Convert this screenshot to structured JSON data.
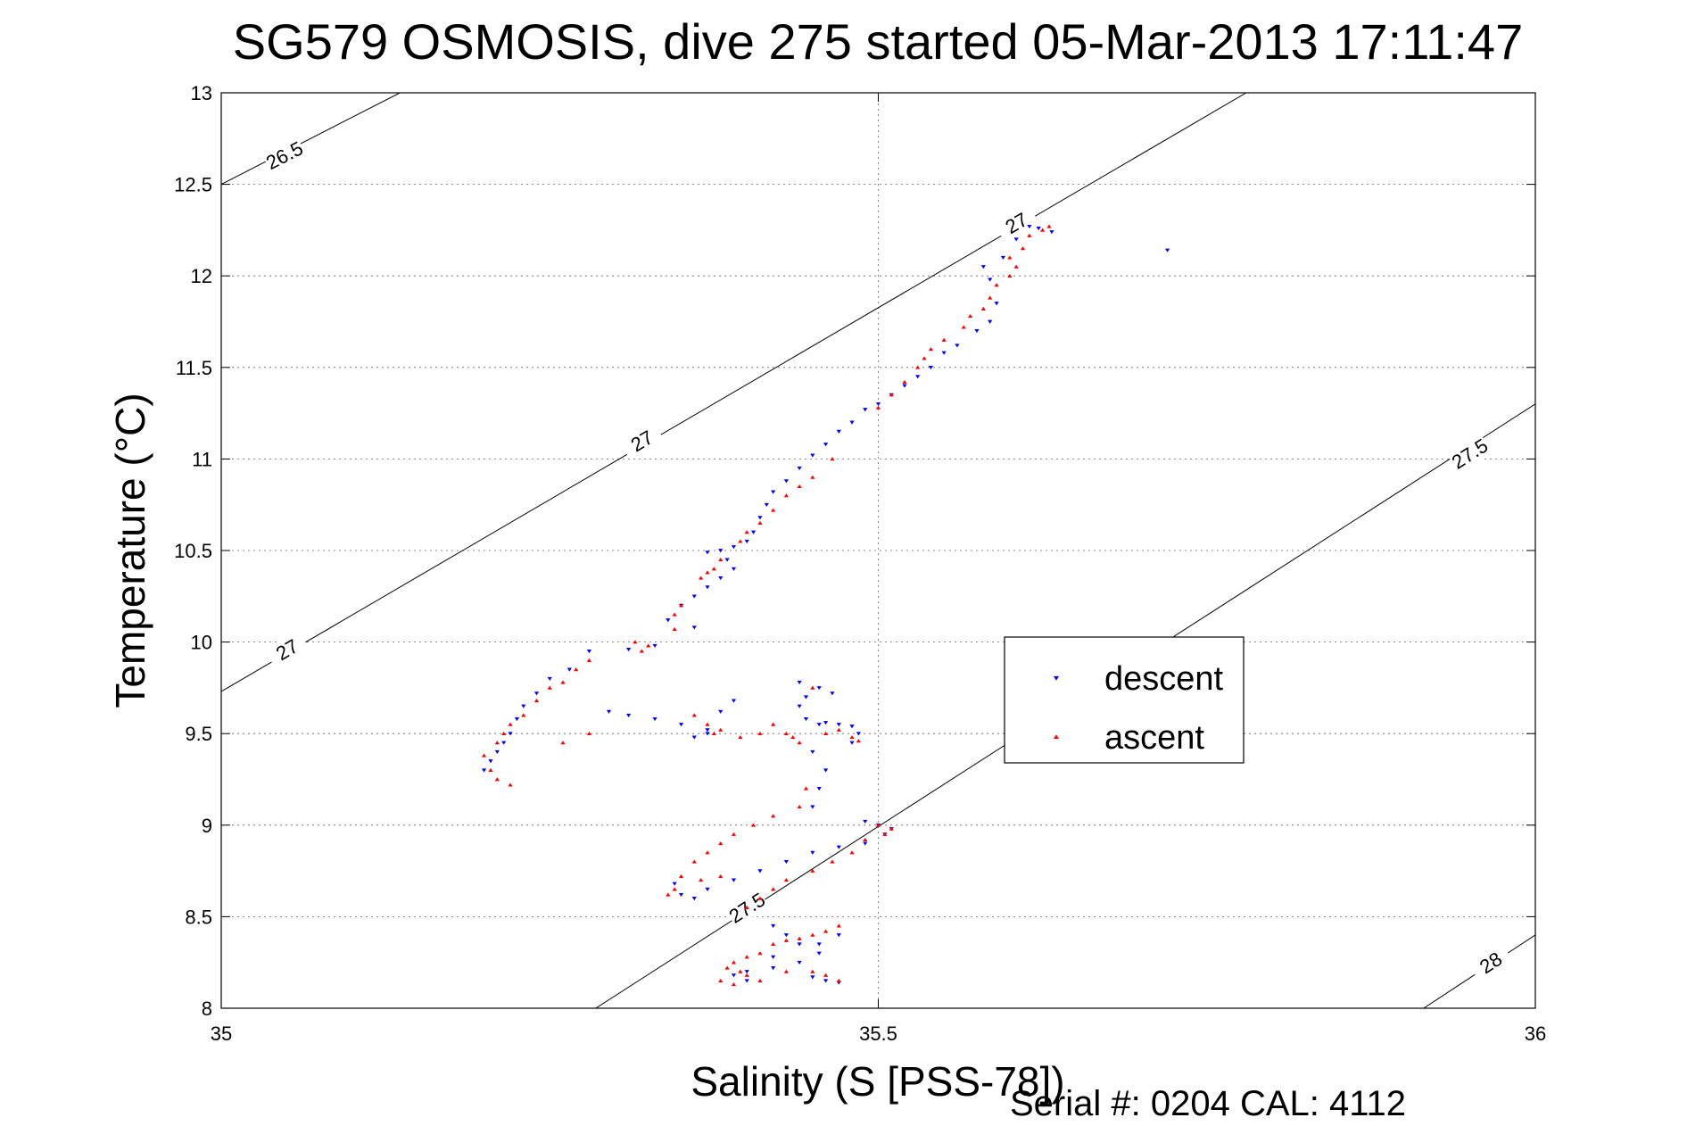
{
  "chart_data": {
    "type": "scatter",
    "title": "SG579 OSMOSIS, dive 275 started 05-Mar-2013 17:11:47",
    "xlabel": "Salinity (S [PSS-78])",
    "ylabel": "Temperature (°C)",
    "footer": "Serial #: 0204  CAL: 4112",
    "xlim": [
      35,
      36
    ],
    "ylim": [
      8,
      13
    ],
    "x_ticks": [
      "35",
      "35.5",
      "36"
    ],
    "y_ticks": [
      "8",
      "8.5",
      "9",
      "9.5",
      "10",
      "10.5",
      "11",
      "11.5",
      "12",
      "12.5",
      "13"
    ],
    "x_tick_values": [
      35,
      35.5,
      36
    ],
    "y_tick_values": [
      8,
      8.5,
      9,
      9.5,
      10,
      10.5,
      11,
      11.5,
      12,
      12.5,
      13
    ],
    "grid": true,
    "legend_position": "middle-right",
    "density_contours": [
      {
        "label": "26.5",
        "points": [
          [
            35,
            12.5
          ],
          [
            35.136,
            13
          ]
        ],
        "labels_at": [
          [
            35.048,
            12.66
          ]
        ]
      },
      {
        "label": "27",
        "points": [
          [
            35,
            9.73
          ],
          [
            35.78,
            13
          ]
        ],
        "labels_at": [
          [
            35.05,
            9.96
          ],
          [
            35.32,
            11.1
          ],
          [
            35.605,
            12.29
          ]
        ]
      },
      {
        "label": "27.5",
        "points": [
          [
            35.285,
            8
          ],
          [
            36,
            11.3
          ]
        ],
        "labels_at": [
          [
            35.4,
            8.55
          ],
          [
            35.95,
            11.03
          ]
        ]
      },
      {
        "label": "28",
        "points": [
          [
            35.915,
            8
          ],
          [
            36,
            8.4
          ]
        ],
        "labels_at": [
          [
            35.966,
            8.25
          ]
        ]
      }
    ],
    "series": [
      {
        "name": "descent",
        "color": "#0000ff",
        "marker": "triangle-down",
        "points": [
          [
            35.615,
            12.27
          ],
          [
            35.622,
            12.26
          ],
          [
            35.632,
            12.24
          ],
          [
            35.72,
            12.14
          ],
          [
            35.605,
            12.2
          ],
          [
            35.595,
            12.1
          ],
          [
            35.58,
            12.05
          ],
          [
            35.585,
            11.98
          ],
          [
            35.59,
            11.85
          ],
          [
            35.585,
            11.75
          ],
          [
            35.575,
            11.7
          ],
          [
            35.56,
            11.62
          ],
          [
            35.55,
            11.58
          ],
          [
            35.54,
            11.5
          ],
          [
            35.53,
            11.45
          ],
          [
            35.52,
            11.4
          ],
          [
            35.51,
            11.35
          ],
          [
            35.5,
            11.3
          ],
          [
            35.49,
            11.27
          ],
          [
            35.48,
            11.2
          ],
          [
            35.47,
            11.15
          ],
          [
            35.46,
            11.08
          ],
          [
            35.45,
            11.02
          ],
          [
            35.44,
            10.95
          ],
          [
            35.43,
            10.88
          ],
          [
            35.42,
            10.82
          ],
          [
            35.415,
            10.75
          ],
          [
            35.41,
            10.68
          ],
          [
            35.405,
            10.6
          ],
          [
            35.4,
            10.55
          ],
          [
            35.39,
            10.52
          ],
          [
            35.38,
            10.5
          ],
          [
            35.37,
            10.49
          ],
          [
            35.385,
            10.45
          ],
          [
            35.39,
            10.4
          ],
          [
            35.38,
            10.35
          ],
          [
            35.37,
            10.3
          ],
          [
            35.36,
            10.25
          ],
          [
            35.35,
            10.2
          ],
          [
            35.34,
            10.12
          ],
          [
            35.36,
            10.08
          ],
          [
            35.33,
            9.98
          ],
          [
            35.31,
            9.96
          ],
          [
            35.28,
            9.95
          ],
          [
            35.265,
            9.85
          ],
          [
            35.25,
            9.8
          ],
          [
            35.24,
            9.72
          ],
          [
            35.23,
            9.65
          ],
          [
            35.225,
            9.58
          ],
          [
            35.22,
            9.5
          ],
          [
            35.215,
            9.45
          ],
          [
            35.21,
            9.4
          ],
          [
            35.205,
            9.35
          ],
          [
            35.2,
            9.3
          ],
          [
            35.295,
            9.62
          ],
          [
            35.31,
            9.6
          ],
          [
            35.33,
            9.58
          ],
          [
            35.35,
            9.55
          ],
          [
            35.37,
            9.5
          ],
          [
            35.38,
            9.62
          ],
          [
            35.39,
            9.68
          ],
          [
            35.36,
            9.48
          ],
          [
            35.37,
            9.52
          ],
          [
            35.44,
            9.78
          ],
          [
            35.445,
            9.7
          ],
          [
            35.44,
            9.65
          ],
          [
            35.445,
            9.58
          ],
          [
            35.455,
            9.55
          ],
          [
            35.46,
            9.56
          ],
          [
            35.47,
            9.55
          ],
          [
            35.48,
            9.54
          ],
          [
            35.485,
            9.5
          ],
          [
            35.48,
            9.45
          ],
          [
            35.455,
            9.75
          ],
          [
            35.465,
            9.72
          ],
          [
            35.45,
            9.4
          ],
          [
            35.46,
            9.3
          ],
          [
            35.455,
            9.2
          ],
          [
            35.45,
            9.1
          ],
          [
            35.49,
            9.02
          ],
          [
            35.5,
            9.0
          ],
          [
            35.51,
            8.98
          ],
          [
            35.505,
            8.95
          ],
          [
            35.49,
            8.9
          ],
          [
            35.47,
            8.88
          ],
          [
            35.45,
            8.85
          ],
          [
            35.43,
            8.8
          ],
          [
            35.41,
            8.75
          ],
          [
            35.39,
            8.7
          ],
          [
            35.37,
            8.65
          ],
          [
            35.36,
            8.6
          ],
          [
            35.35,
            8.62
          ],
          [
            35.345,
            8.68
          ],
          [
            35.42,
            8.45
          ],
          [
            35.43,
            8.4
          ],
          [
            35.44,
            8.35
          ],
          [
            35.455,
            8.35
          ],
          [
            35.47,
            8.4
          ],
          [
            35.455,
            8.3
          ],
          [
            35.44,
            8.25
          ],
          [
            35.42,
            8.22
          ],
          [
            35.4,
            8.2
          ],
          [
            35.39,
            8.18
          ],
          [
            35.4,
            8.15
          ],
          [
            35.45,
            8.17
          ],
          [
            35.46,
            8.15
          ],
          [
            35.47,
            8.14
          ],
          [
            35.42,
            8.28
          ]
        ]
      },
      {
        "name": "ascent",
        "color": "#ff0000",
        "marker": "triangle-up",
        "points": [
          [
            35.63,
            12.27
          ],
          [
            35.625,
            12.25
          ],
          [
            35.615,
            12.22
          ],
          [
            35.61,
            12.15
          ],
          [
            35.6,
            12.1
          ],
          [
            35.605,
            12.05
          ],
          [
            35.6,
            12.0
          ],
          [
            35.59,
            11.95
          ],
          [
            35.585,
            11.88
          ],
          [
            35.58,
            11.82
          ],
          [
            35.57,
            11.78
          ],
          [
            35.565,
            11.72
          ],
          [
            35.55,
            11.65
          ],
          [
            35.54,
            11.6
          ],
          [
            35.535,
            11.55
          ],
          [
            35.53,
            11.5
          ],
          [
            35.52,
            11.42
          ],
          [
            35.51,
            11.35
          ],
          [
            35.5,
            11.28
          ],
          [
            35.465,
            11.0
          ],
          [
            35.45,
            10.9
          ],
          [
            35.44,
            10.85
          ],
          [
            35.43,
            10.8
          ],
          [
            35.42,
            10.72
          ],
          [
            35.41,
            10.65
          ],
          [
            35.4,
            10.6
          ],
          [
            35.395,
            10.55
          ],
          [
            35.38,
            10.45
          ],
          [
            35.375,
            10.4
          ],
          [
            35.37,
            10.38
          ],
          [
            35.365,
            10.35
          ],
          [
            35.35,
            10.2
          ],
          [
            35.345,
            10.15
          ],
          [
            35.345,
            10.07
          ],
          [
            35.325,
            9.98
          ],
          [
            35.32,
            9.95
          ],
          [
            35.315,
            10.0
          ],
          [
            35.28,
            9.9
          ],
          [
            35.27,
            9.85
          ],
          [
            35.26,
            9.78
          ],
          [
            35.25,
            9.75
          ],
          [
            35.24,
            9.68
          ],
          [
            35.23,
            9.6
          ],
          [
            35.22,
            9.55
          ],
          [
            35.215,
            9.5
          ],
          [
            35.21,
            9.45
          ],
          [
            35.2,
            9.38
          ],
          [
            35.205,
            9.3
          ],
          [
            35.21,
            9.25
          ],
          [
            35.22,
            9.22
          ],
          [
            35.26,
            9.45
          ],
          [
            35.28,
            9.5
          ],
          [
            35.36,
            9.6
          ],
          [
            35.37,
            9.55
          ],
          [
            35.375,
            9.5
          ],
          [
            35.38,
            9.52
          ],
          [
            35.395,
            9.48
          ],
          [
            35.41,
            9.5
          ],
          [
            35.42,
            9.55
          ],
          [
            35.43,
            9.5
          ],
          [
            35.435,
            9.48
          ],
          [
            35.44,
            9.45
          ],
          [
            35.46,
            9.5
          ],
          [
            35.47,
            9.52
          ],
          [
            35.48,
            9.48
          ],
          [
            35.485,
            9.46
          ],
          [
            35.45,
            9.75
          ],
          [
            35.445,
            9.2
          ],
          [
            35.44,
            9.1
          ],
          [
            35.42,
            9.05
          ],
          [
            35.405,
            9.0
          ],
          [
            35.39,
            8.95
          ],
          [
            35.38,
            8.9
          ],
          [
            35.37,
            8.85
          ],
          [
            35.36,
            8.8
          ],
          [
            35.35,
            8.72
          ],
          [
            35.345,
            8.65
          ],
          [
            35.34,
            8.62
          ],
          [
            35.365,
            8.7
          ],
          [
            35.38,
            8.72
          ],
          [
            35.5,
            9.0
          ],
          [
            35.505,
            8.95
          ],
          [
            35.51,
            8.98
          ],
          [
            35.49,
            8.92
          ],
          [
            35.48,
            8.85
          ],
          [
            35.465,
            8.8
          ],
          [
            35.45,
            8.75
          ],
          [
            35.43,
            8.7
          ],
          [
            35.42,
            8.65
          ],
          [
            35.41,
            8.6
          ],
          [
            35.4,
            8.55
          ],
          [
            35.47,
            8.45
          ],
          [
            35.46,
            8.42
          ],
          [
            35.45,
            8.4
          ],
          [
            35.44,
            8.38
          ],
          [
            35.43,
            8.37
          ],
          [
            35.42,
            8.35
          ],
          [
            35.41,
            8.3
          ],
          [
            35.4,
            8.28
          ],
          [
            35.39,
            8.25
          ],
          [
            35.395,
            8.2
          ],
          [
            35.4,
            8.18
          ],
          [
            35.41,
            8.15
          ],
          [
            35.43,
            8.2
          ],
          [
            35.45,
            8.2
          ],
          [
            35.46,
            8.18
          ],
          [
            35.47,
            8.15
          ],
          [
            35.38,
            8.15
          ],
          [
            35.385,
            8.22
          ],
          [
            35.39,
            8.13
          ]
        ]
      }
    ]
  }
}
